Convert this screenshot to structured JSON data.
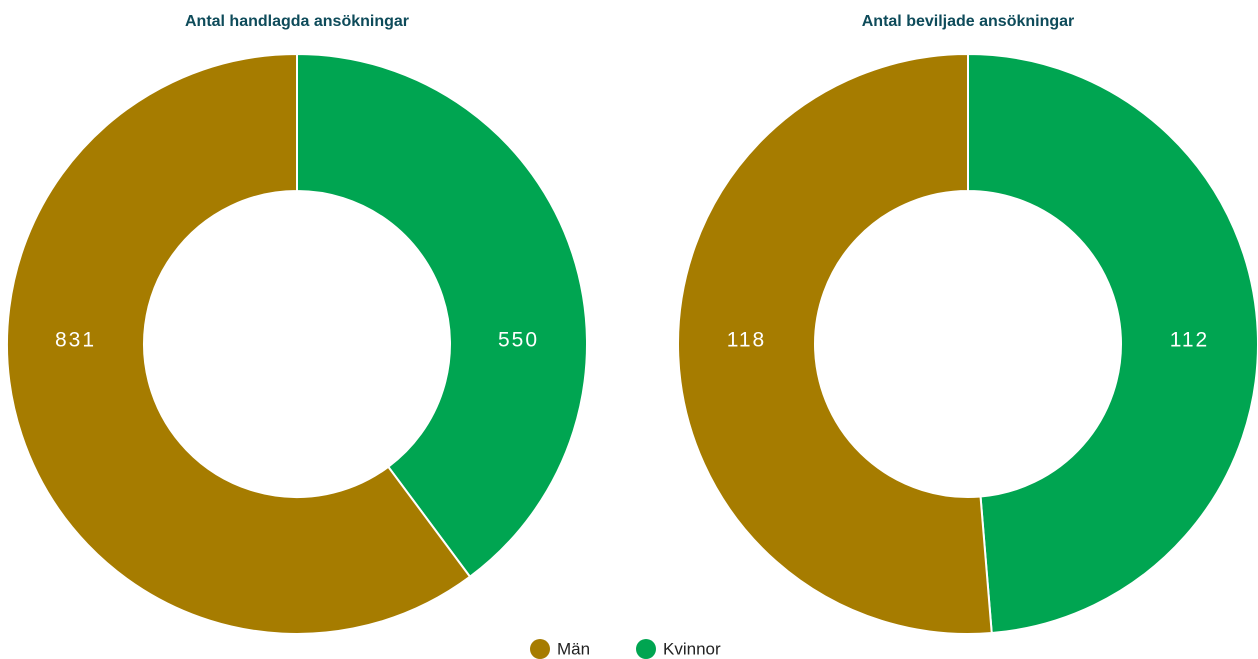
{
  "chart_data": [
    {
      "type": "pie",
      "donut": true,
      "title": "Antal handlagda ansökningar",
      "categories": [
        "Kvinnor",
        "Män"
      ],
      "values": [
        550,
        831
      ],
      "colors": [
        "#00a551",
        "#a67c00"
      ]
    },
    {
      "type": "pie",
      "donut": true,
      "title": "Antal beviljade ansökningar",
      "categories": [
        "Kvinnor",
        "Män"
      ],
      "values": [
        112,
        118
      ],
      "colors": [
        "#00a551",
        "#a67c00"
      ]
    }
  ]
}
